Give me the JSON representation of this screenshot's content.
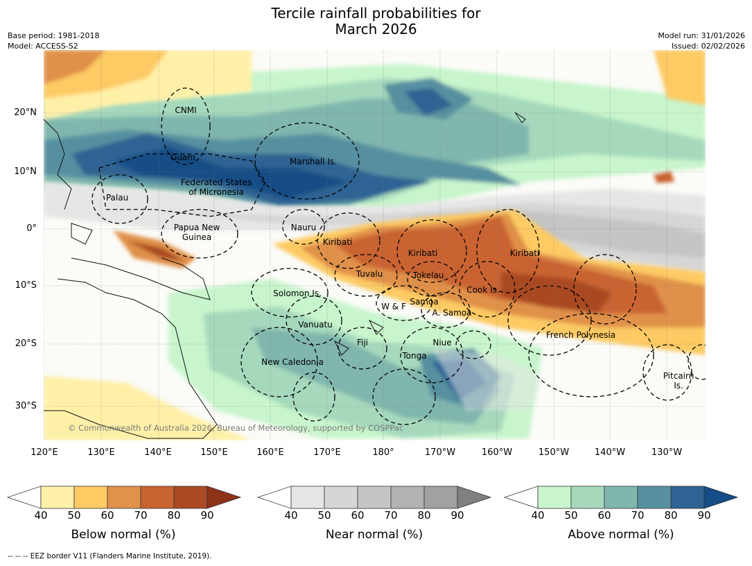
{
  "title": {
    "line1": "Tercile rainfall probabilities for",
    "line2": "March 2026"
  },
  "meta": {
    "base_period": "Base period: 1981-2018",
    "model": "Model: ACCESS-S2",
    "model_run": "Model run: 31/01/2026",
    "issued": "Issued: 02/02/2026"
  },
  "axes": {
    "lat_labels": [
      "20°N",
      "10°N",
      "0°",
      "10°S",
      "20°S",
      "30°S"
    ],
    "lon_labels": [
      "120°E",
      "130°E",
      "140°E",
      "150°E",
      "160°E",
      "170°E",
      "180°",
      "170°W",
      "160°W",
      "150°W",
      "140°W",
      "130°W"
    ]
  },
  "regions": {
    "cnmi": "CNMI",
    "guam": "Guam",
    "marshall": "Marshall Is.",
    "fsm_1": "Federated States",
    "fsm_2": "of Micronesia",
    "palau": "Palau",
    "png_1": "Papua New",
    "png_2": "Guinea",
    "nauru": "Nauru",
    "kiribati_w": "Kiribati",
    "kiribati_c": "Kiribati",
    "kiribati_e": "Kiribati",
    "tuvalu": "Tuvalu",
    "tokelau": "Tokelau",
    "solomon": "Solomon Is.",
    "samoa": "Samoa",
    "wf": "W & F",
    "asamoa": "A. Samoa",
    "cook": "Cook Is.",
    "vanuatu": "Vanuatu",
    "fiji": "Fiji",
    "niue": "Niue",
    "tonga": "Tonga",
    "french_polynesia": "French Polynesia",
    "new_caledonia": "New Caledonia",
    "pitcairn_1": "Pitcairn",
    "pitcairn_2": "Is."
  },
  "copyright": "© Commonwealth of Australia 2026, Bureau of Meteorology, supported by COSPPac",
  "colorbars": [
    {
      "label": "Below normal (%)",
      "ticks": [
        "40",
        "50",
        "60",
        "70",
        "80",
        "90"
      ],
      "colors": [
        "#fff0a8",
        "#fdca63",
        "#e0914a",
        "#c96332",
        "#a94a24"
      ],
      "extend_color": "#8c3318"
    },
    {
      "label": "Near normal (%)",
      "ticks": [
        "40",
        "50",
        "60",
        "70",
        "80",
        "90"
      ],
      "colors": [
        "#e6e6e6",
        "#d6d6d6",
        "#c5c5c5",
        "#b3b3b3",
        "#a1a1a1"
      ],
      "extend_color": "#808080"
    },
    {
      "label": "Above normal (%)",
      "ticks": [
        "40",
        "50",
        "60",
        "70",
        "80",
        "90"
      ],
      "colors": [
        "#c8f5cc",
        "#a6d9bc",
        "#80b6ad",
        "#5790a0",
        "#2f6393"
      ],
      "extend_color": "#174d86"
    }
  ],
  "footnote": "--  --  -- EEZ border V11 (Flanders Marine Institute, 2019)."
}
